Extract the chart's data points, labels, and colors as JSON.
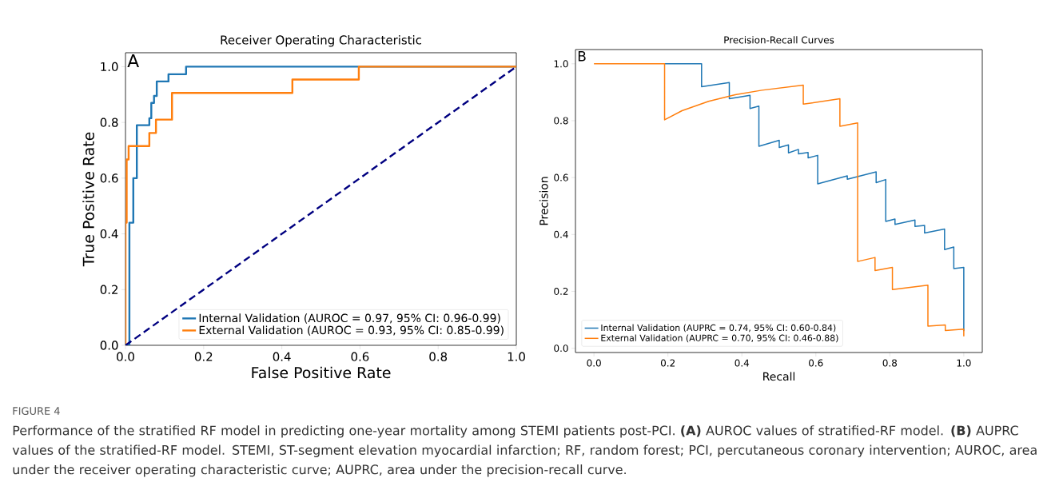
{
  "chart_data": [
    {
      "type": "line",
      "title": "Receiver Operating Characteristic",
      "xlabel": "False Positive Rate",
      "ylabel": "True Positive Rate",
      "xlim": [
        0,
        1
      ],
      "ylim": [
        0,
        1.05
      ],
      "xticks": [
        {
          "value": 0,
          "label": "0.0"
        },
        {
          "value": 0.2,
          "label": "0.2"
        },
        {
          "value": 0.4,
          "label": "0.4"
        },
        {
          "value": 0.6,
          "label": "0.6"
        },
        {
          "value": 0.8,
          "label": "0.8"
        },
        {
          "value": 1,
          "label": "1.0"
        }
      ],
      "yticks": [
        {
          "value": 0,
          "label": "0.0"
        },
        {
          "value": 0.2,
          "label": "0.2"
        },
        {
          "value": 0.4,
          "label": "0.4"
        },
        {
          "value": 0.6,
          "label": "0.6"
        },
        {
          "value": 0.8,
          "label": "0.8"
        },
        {
          "value": 1,
          "label": "1.0"
        }
      ],
      "legend": "bottom right",
      "annotations": [
        "A"
      ],
      "series": [
        {
          "name": "Internal Validation (AUROC = 0.97, 95% CI: 0.96-0.99)",
          "color": "#1f77b4",
          "x": [
            0,
            0.01,
            0.01,
            0.02,
            0.02,
            0.029,
            0.029,
            0.061,
            0.061,
            0.066,
            0.066,
            0.073,
            0.073,
            0.08,
            0.08,
            0.11,
            0.11,
            0.155,
            0.155,
            1
          ],
          "values": [
            0,
            0,
            0.44,
            0.44,
            0.6,
            0.6,
            0.79,
            0.79,
            0.815,
            0.815,
            0.87,
            0.87,
            0.895,
            0.895,
            0.947,
            0.947,
            0.973,
            0.973,
            1,
            1
          ]
        },
        {
          "name": "External Validation (AUROC = 0.93, 95% CI: 0.85-0.99)",
          "color": "#ff7f0e",
          "x": [
            0,
            0,
            0.003,
            0.003,
            0.008,
            0.008,
            0.061,
            0.061,
            0.078,
            0.078,
            0.119,
            0.119,
            0.427,
            0.427,
            0.597,
            0.597,
            1
          ],
          "values": [
            0,
            0.44,
            0.44,
            0.667,
            0.667,
            0.715,
            0.715,
            0.762,
            0.762,
            0.81,
            0.81,
            0.906,
            0.906,
            0.954,
            0.954,
            1,
            1
          ]
        },
        {
          "color": "#000080",
          "line_style": "dashed",
          "x": [
            0,
            1
          ],
          "values": [
            0,
            1
          ]
        }
      ]
    },
    {
      "type": "line",
      "title": "Precision-Recall Curves",
      "xlabel": "Recall",
      "ylabel": "Precision",
      "xlim": [
        -0.05,
        1.05
      ],
      "ylim": [
        -0.015,
        1.05
      ],
      "xticks": [
        {
          "value": 0,
          "label": "0.0"
        },
        {
          "value": 0.2,
          "label": "0.2"
        },
        {
          "value": 0.4,
          "label": "0.4"
        },
        {
          "value": 0.6,
          "label": "0.6"
        },
        {
          "value": 0.8,
          "label": "0.8"
        },
        {
          "value": 1,
          "label": "1.0"
        }
      ],
      "yticks": [
        {
          "value": 0,
          "label": "0.0"
        },
        {
          "value": 0.2,
          "label": "0.2"
        },
        {
          "value": 0.4,
          "label": "0.4"
        },
        {
          "value": 0.6,
          "label": "0.6"
        },
        {
          "value": 0.8,
          "label": "0.8"
        },
        {
          "value": 1,
          "label": "1.0"
        }
      ],
      "legend": "bottom left",
      "annotations": [
        "B",
        "FIGURE 4",
        "Performance of the stratified RF model in predicting one-year mortality among STEMI patients post-PCI. **(A)** AUROC values of stratified-RF model. **(B)** AUPRC values of the stratified-RF model. STEMI, ST-segment elevation myocardial infarction; RF, random forest; PCI, percutaneous coronary intervention; AUROC, area under the receiver operating characteristic curve; AUPRC, area under the precision-recall curve."
      ],
      "series": [
        {
          "name": "Internal Validation (AUPRC = 0.74, 95% CI: 0.60-0.84)",
          "color": "#1f77b4",
          "x": [
            0.191,
            0.291,
            0.291,
            0.366,
            0.366,
            0.422,
            0.422,
            0.446,
            0.446,
            0.501,
            0.501,
            0.526,
            0.526,
            0.553,
            0.553,
            0.579,
            0.579,
            0.605,
            0.605,
            0.685,
            0.685,
            0.763,
            0.763,
            0.789,
            0.789,
            0.814,
            0.814,
            0.868,
            0.868,
            0.894,
            0.894,
            0.948,
            0.948,
            0.973,
            0.973,
            1,
            1
          ],
          "values": [
            1,
            1,
            0.919,
            0.934,
            0.877,
            0.889,
            0.843,
            0.851,
            0.71,
            0.731,
            0.706,
            0.715,
            0.687,
            0.699,
            0.683,
            0.688,
            0.669,
            0.678,
            0.578,
            0.606,
            0.594,
            0.62,
            0.582,
            0.593,
            0.446,
            0.454,
            0.435,
            0.451,
            0.428,
            0.432,
            0.405,
            0.419,
            0.347,
            0.356,
            0.28,
            0.284,
            0.06
          ]
        },
        {
          "name": "External Validation (AUPRC = 0.70, 95% CI: 0.46-0.88)",
          "color": "#ff7f0e",
          "x": [
            0,
            0.191,
            0.191,
            0.238,
            0.31,
            0.382,
            0.454,
            0.566,
            0.566,
            0.665,
            0.665,
            0.713,
            0.713,
            0.76,
            0.76,
            0.807,
            0.807,
            0.903,
            0.903,
            0.95,
            0.95,
            1,
            1
          ],
          "values": [
            1,
            1,
            0.803,
            0.835,
            0.868,
            0.891,
            0.907,
            0.925,
            0.858,
            0.877,
            0.78,
            0.792,
            0.305,
            0.319,
            0.273,
            0.284,
            0.206,
            0.222,
            0.078,
            0.082,
            0.062,
            0.067,
            0.042
          ]
        }
      ]
    }
  ]
}
